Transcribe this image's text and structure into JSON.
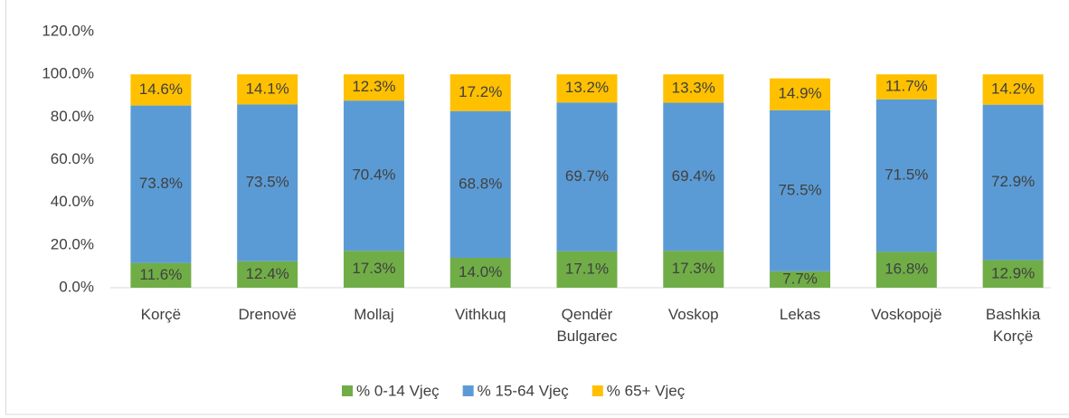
{
  "chart_data": {
    "type": "stacked_bar",
    "categories": [
      "Korçë",
      "Drenovë",
      "Mollaj",
      "Vithkuq",
      "Qendër Bulgarec",
      "Voskop",
      "Lekas",
      "Voskopojë",
      "Bashkia Korçë"
    ],
    "series": [
      {
        "name": "% 0-14 Vjeç",
        "color": "#70ad47",
        "values": [
          11.6,
          12.4,
          17.3,
          14.0,
          17.1,
          17.3,
          7.7,
          16.8,
          12.9
        ],
        "value_labels": [
          "11.6%",
          "12.4%",
          "17.3%",
          "14.0%",
          "17.1%",
          "17.3%",
          "7.7%",
          "16.8%",
          "12.9%"
        ]
      },
      {
        "name": "% 15-64 Vjeç",
        "color": "#5b9bd5",
        "values": [
          73.8,
          73.5,
          70.4,
          68.8,
          69.7,
          69.4,
          75.5,
          71.5,
          72.9
        ],
        "value_labels": [
          "73.8%",
          "73.5%",
          "70.4%",
          "68.8%",
          "69.7%",
          "69.4%",
          "75.5%",
          "71.5%",
          "72.9%"
        ]
      },
      {
        "name": "% 65+ Vjeç",
        "color": "#ffc000",
        "values": [
          14.6,
          14.1,
          12.3,
          17.2,
          13.2,
          13.3,
          14.9,
          11.7,
          14.2
        ],
        "value_labels": [
          "14.6%",
          "14.1%",
          "12.3%",
          "17.2%",
          "13.2%",
          "13.3%",
          "14.9%",
          "11.7%",
          "14.2%"
        ]
      }
    ],
    "ylim": [
      0,
      120
    ],
    "yticks": [
      {
        "value": 0,
        "label": "0.0%"
      },
      {
        "value": 20,
        "label": "20.0%"
      },
      {
        "value": 40,
        "label": "40.0%"
      },
      {
        "value": 60,
        "label": "60.0%"
      },
      {
        "value": 80,
        "label": "80.0%"
      },
      {
        "value": 100,
        "label": "100.0%"
      },
      {
        "value": 120,
        "label": "120.0%"
      }
    ],
    "legend": "bottom"
  }
}
